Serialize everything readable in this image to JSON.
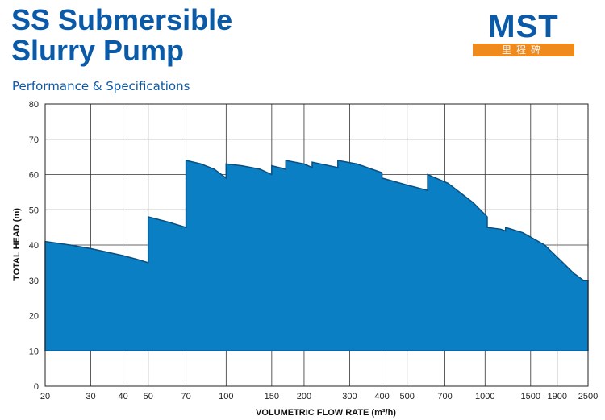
{
  "header": {
    "title_line1": "SS Submersible",
    "title_line2": "Slurry Pump",
    "subtitle": "Performance & Specifications"
  },
  "logo": {
    "text": "MST",
    "subtext": "里程碑",
    "colors": {
      "primary": "#0b5aa8",
      "band": "#f08a1c"
    }
  },
  "chart_data": {
    "type": "area",
    "xlabel": "VOLUMETRIC FLOW RATE (m³/h)",
    "ylabel": "TOTAL HEAD (m)",
    "x_scale": "log",
    "xlim": [
      20,
      2500
    ],
    "ylim": [
      0,
      80
    ],
    "x_ticks": [
      20,
      30,
      40,
      50,
      70,
      100,
      150,
      200,
      300,
      400,
      500,
      700,
      1000,
      1500,
      1900,
      2500
    ],
    "y_ticks": [
      0,
      10,
      20,
      30,
      40,
      50,
      60,
      70,
      80
    ],
    "grid": true,
    "fill_color": "#0a7fc4",
    "baseline_head": 10,
    "envelope_top": [
      [
        20,
        41
      ],
      [
        25,
        40
      ],
      [
        30,
        39
      ],
      [
        40,
        37
      ],
      [
        45,
        36
      ],
      [
        50,
        35
      ],
      [
        50,
        48
      ],
      [
        60,
        46.5
      ],
      [
        70,
        45
      ],
      [
        70,
        64
      ],
      [
        80,
        63
      ],
      [
        90,
        61.5
      ],
      [
        100,
        59
      ],
      [
        100,
        63
      ],
      [
        115,
        62.5
      ],
      [
        135,
        61.5
      ],
      [
        150,
        60
      ],
      [
        150,
        62.5
      ],
      [
        170,
        61.5
      ],
      [
        170,
        64
      ],
      [
        200,
        63
      ],
      [
        215,
        62
      ],
      [
        215,
        63.5
      ],
      [
        270,
        62
      ],
      [
        270,
        64
      ],
      [
        320,
        63
      ],
      [
        400,
        60.5
      ],
      [
        400,
        59
      ],
      [
        500,
        57
      ],
      [
        600,
        55.5
      ],
      [
        600,
        60
      ],
      [
        720,
        57.5
      ],
      [
        900,
        52
      ],
      [
        1020,
        48
      ],
      [
        1020,
        45
      ],
      [
        1150,
        44.5
      ],
      [
        1200,
        44
      ],
      [
        1200,
        45
      ],
      [
        1400,
        43.5
      ],
      [
        1700,
        40
      ],
      [
        2000,
        35
      ],
      [
        2200,
        32
      ],
      [
        2400,
        30
      ],
      [
        2500,
        30
      ]
    ]
  }
}
